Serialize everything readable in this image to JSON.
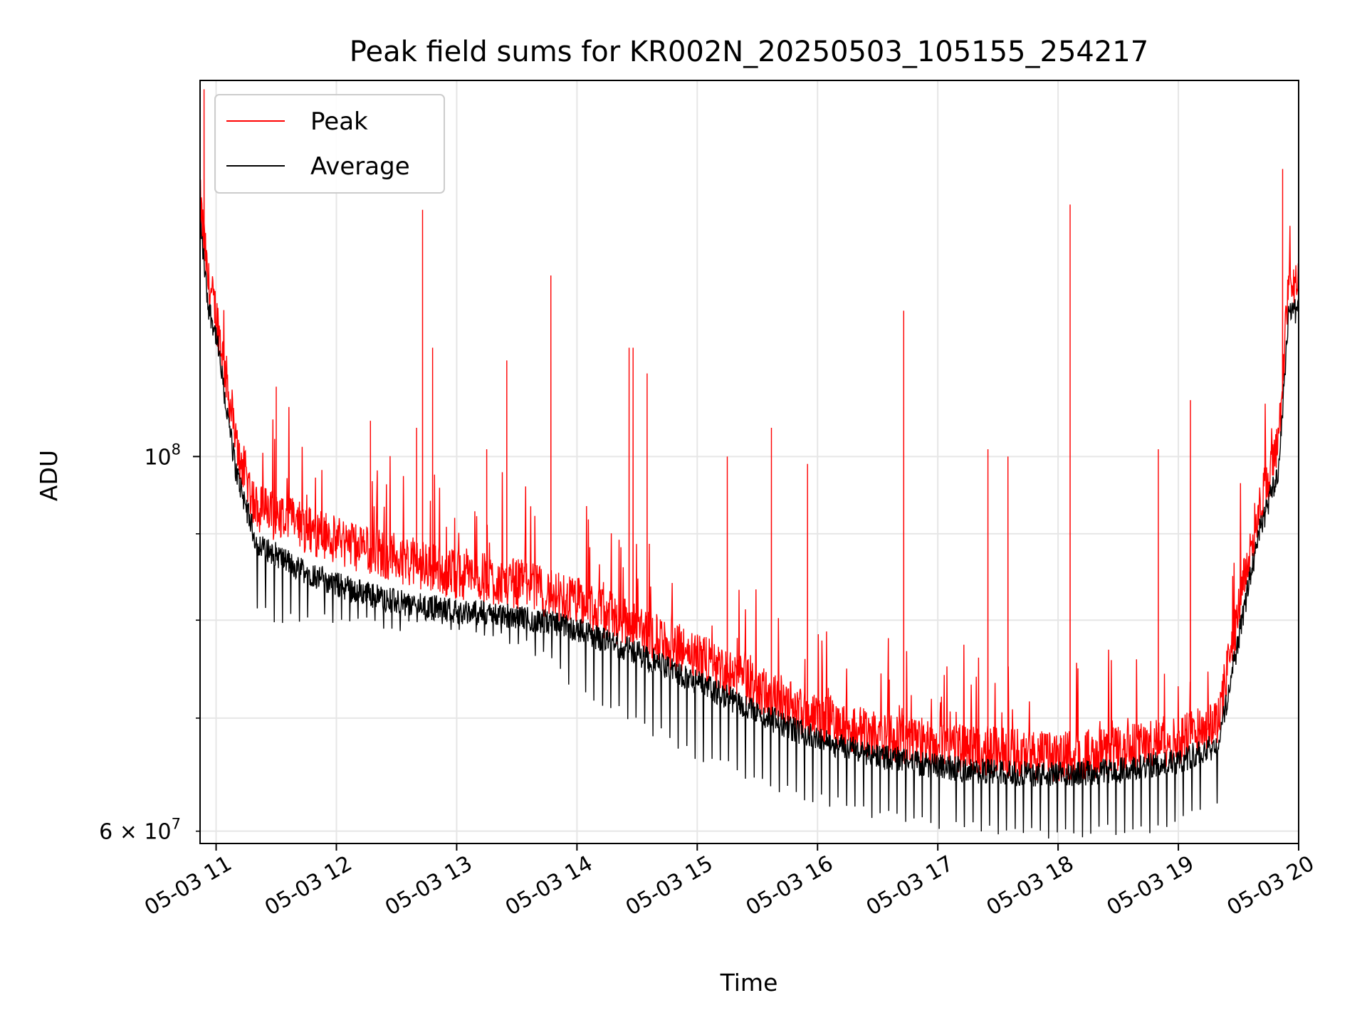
{
  "chart_data": {
    "type": "line",
    "title": "Peak field sums for KR002N_20250503_105155_254217",
    "xlabel": "Time",
    "ylabel": "ADU",
    "yscale": "log",
    "grid": true,
    "legend_position": "upper-left",
    "x_ticks": [
      "05-03 11",
      "05-03 12",
      "05-03 13",
      "05-03 14",
      "05-03 15",
      "05-03 16",
      "05-03 17",
      "05-03 18",
      "05-03 19",
      "05-03 20"
    ],
    "y_tick_labels": {
      "major": "10^8",
      "minor": "6×10^7"
    },
    "xlim": [
      "2025-05-03 10:52",
      "2025-05-03 20:00"
    ],
    "ylim": [
      59000000,
      167000000
    ],
    "series": [
      {
        "name": "Peak",
        "color": "#ff0000",
        "baseline": [
          [
            "2025-05-03 10:52",
            140000000
          ],
          [
            "2025-05-03 10:56",
            125000000
          ],
          [
            "2025-05-03 11:00",
            120000000
          ],
          [
            "2025-05-03 11:05",
            110000000
          ],
          [
            "2025-05-03 11:10",
            100000000
          ],
          [
            "2025-05-03 11:20",
            92000000
          ],
          [
            "2025-05-03 11:40",
            90000000
          ],
          [
            "2025-05-03 12:00",
            88000000
          ],
          [
            "2025-05-03 12:30",
            86000000
          ],
          [
            "2025-05-03 13:00",
            84000000
          ],
          [
            "2025-05-03 13:30",
            83000000
          ],
          [
            "2025-05-03 14:00",
            81000000
          ],
          [
            "2025-05-03 14:30",
            78000000
          ],
          [
            "2025-05-03 15:00",
            75000000
          ],
          [
            "2025-05-03 15:30",
            72000000
          ],
          [
            "2025-05-03 16:00",
            69000000
          ],
          [
            "2025-05-03 16:30",
            67500000
          ],
          [
            "2025-05-03 17:00",
            66500000
          ],
          [
            "2025-05-03 17:30",
            66000000
          ],
          [
            "2025-05-03 18:00",
            65500000
          ],
          [
            "2025-05-03 18:30",
            66000000
          ],
          [
            "2025-05-03 19:00",
            67000000
          ],
          [
            "2025-05-03 19:20",
            69000000
          ],
          [
            "2025-05-03 19:30",
            80000000
          ],
          [
            "2025-05-03 19:40",
            92000000
          ],
          [
            "2025-05-03 19:50",
            100000000
          ],
          [
            "2025-05-03 19:55",
            125000000
          ],
          [
            "2025-05-03 20:00",
            124000000
          ]
        ],
        "spikes": [
          [
            "2025-05-03 10:54",
            165000000
          ],
          [
            "2025-05-03 11:30",
            110000000
          ],
          [
            "2025-05-03 12:17",
            105000000
          ],
          [
            "2025-05-03 12:40",
            104000000
          ],
          [
            "2025-05-03 12:43",
            140000000
          ],
          [
            "2025-05-03 12:48",
            116000000
          ],
          [
            "2025-05-03 13:15",
            101000000
          ],
          [
            "2025-05-03 13:25",
            114000000
          ],
          [
            "2025-05-03 13:47",
            128000000
          ],
          [
            "2025-05-03 14:26",
            116000000
          ],
          [
            "2025-05-03 14:28",
            116000000
          ],
          [
            "2025-05-03 14:35",
            112000000
          ],
          [
            "2025-05-03 15:15",
            100000000
          ],
          [
            "2025-05-03 15:37",
            104000000
          ],
          [
            "2025-05-03 15:55",
            99000000
          ],
          [
            "2025-05-03 16:43",
            122000000
          ],
          [
            "2025-05-03 17:25",
            101000000
          ],
          [
            "2025-05-03 17:35",
            100000000
          ],
          [
            "2025-05-03 18:06",
            141000000
          ],
          [
            "2025-05-03 18:50",
            101000000
          ],
          [
            "2025-05-03 19:06",
            108000000
          ],
          [
            "2025-05-03 19:52",
            148000000
          ]
        ]
      },
      {
        "name": "Average",
        "color": "#000000",
        "baseline": [
          [
            "2025-05-03 10:52",
            138000000
          ],
          [
            "2025-05-03 10:56",
            123000000
          ],
          [
            "2025-05-03 11:00",
            118000000
          ],
          [
            "2025-05-03 11:05",
            107000000
          ],
          [
            "2025-05-03 11:10",
            98000000
          ],
          [
            "2025-05-03 11:20",
            89000000
          ],
          [
            "2025-05-03 11:40",
            86000000
          ],
          [
            "2025-05-03 12:00",
            84000000
          ],
          [
            "2025-05-03 12:30",
            82000000
          ],
          [
            "2025-05-03 13:00",
            81000000
          ],
          [
            "2025-05-03 13:30",
            80500000
          ],
          [
            "2025-05-03 14:00",
            79000000
          ],
          [
            "2025-05-03 14:30",
            76500000
          ],
          [
            "2025-05-03 15:00",
            73500000
          ],
          [
            "2025-05-03 15:30",
            70500000
          ],
          [
            "2025-05-03 16:00",
            68000000
          ],
          [
            "2025-05-03 16:30",
            66500000
          ],
          [
            "2025-05-03 17:00",
            65500000
          ],
          [
            "2025-05-03 17:30",
            65000000
          ],
          [
            "2025-05-03 18:00",
            64800000
          ],
          [
            "2025-05-03 18:30",
            65200000
          ],
          [
            "2025-05-03 19:00",
            66000000
          ],
          [
            "2025-05-03 19:20",
            67500000
          ],
          [
            "2025-05-03 19:30",
            78000000
          ],
          [
            "2025-05-03 19:40",
            90000000
          ],
          [
            "2025-05-03 19:50",
            98000000
          ],
          [
            "2025-05-03 19:55",
            122000000
          ],
          [
            "2025-05-03 20:00",
            122000000
          ]
        ],
        "dips_floor": [
          [
            "2025-05-03 11:20",
            80000000
          ],
          [
            "2025-05-03 12:00",
            79000000
          ],
          [
            "2025-05-03 13:00",
            78500000
          ],
          [
            "2025-05-03 13:40",
            76000000
          ],
          [
            "2025-05-03 14:00",
            72000000
          ],
          [
            "2025-05-03 15:00",
            66000000
          ],
          [
            "2025-05-03 16:00",
            62000000
          ],
          [
            "2025-05-03 17:00",
            60000000
          ],
          [
            "2025-05-03 18:00",
            59000000
          ],
          [
            "2025-05-03 19:00",
            60000000
          ],
          [
            "2025-05-03 19:20",
            62000000
          ]
        ]
      }
    ]
  }
}
